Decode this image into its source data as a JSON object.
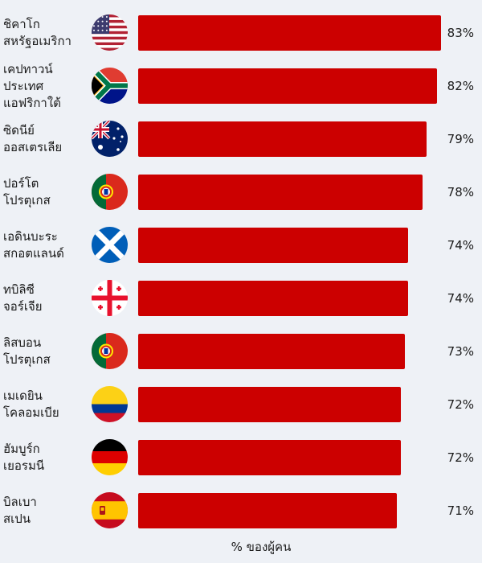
{
  "chart_data": {
    "type": "bar",
    "orientation": "horizontal",
    "xlabel": "% ของผู้คน",
    "xlim": [
      0,
      100
    ],
    "value_suffix": "%",
    "categories": [
      {
        "city": "ชิคาโก",
        "country": "สหรัฐอเมริกา",
        "flag": "usa-flag-icon"
      },
      {
        "city": "เคปทาวน์",
        "country": "ประเทศ แอฟริกาใต้",
        "flag": "south-africa-flag-icon"
      },
      {
        "city": "ซิดนีย์",
        "country": "ออสเตรเลีย",
        "flag": "australia-flag-icon"
      },
      {
        "city": "ปอร์โต",
        "country": "โปรตุเกส",
        "flag": "portugal-flag-icon"
      },
      {
        "city": "เอดินบะระ",
        "country": "สกอตแลนด์",
        "flag": "scotland-flag-icon"
      },
      {
        "city": "ทบิลิซี",
        "country": "จอร์เจีย",
        "flag": "georgia-flag-icon"
      },
      {
        "city": "ลิสบอน",
        "country": "โปรตุเกส",
        "flag": "portugal-flag-icon"
      },
      {
        "city": "เมเดยิน",
        "country": "โคลอมเบีย",
        "flag": "colombia-flag-icon"
      },
      {
        "city": "ฮัมบูร์ก",
        "country": "เยอรมนี",
        "flag": "germany-flag-icon"
      },
      {
        "city": "บิลเบา",
        "country": "สเปน",
        "flag": "spain-flag-icon"
      }
    ],
    "values": [
      83,
      82,
      79,
      78,
      74,
      74,
      73,
      72,
      72,
      71
    ],
    "bar_color": "#cc0000"
  }
}
